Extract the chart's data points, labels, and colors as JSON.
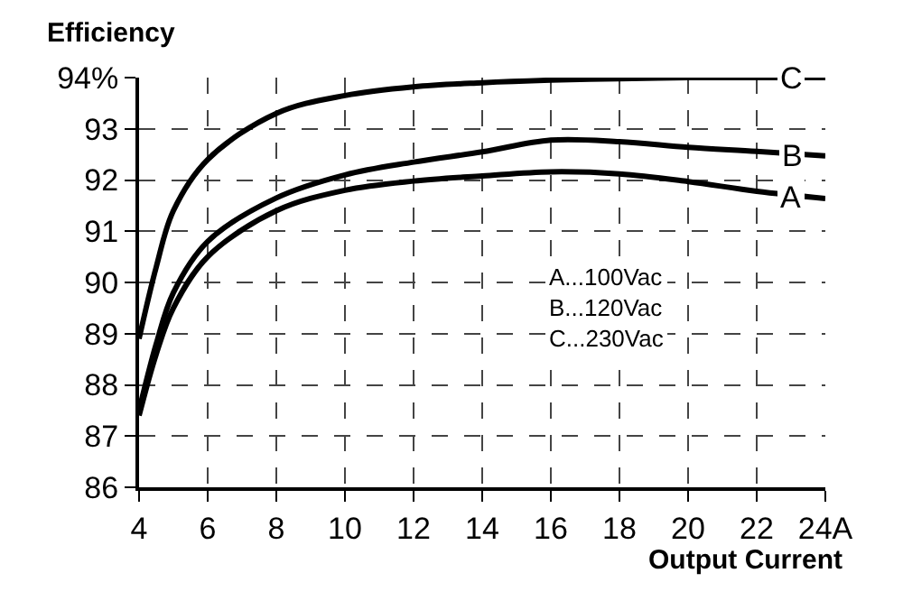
{
  "chart_data": {
    "type": "line",
    "xlabel": "Output Current",
    "ylabel": "Efficiency",
    "x": [
      4,
      4.5,
      5,
      6,
      8,
      10,
      12,
      14,
      16,
      18,
      20,
      22,
      24
    ],
    "series": [
      {
        "name": "C",
        "color": "#000000",
        "values": [
          88.9,
          90.3,
          91.4,
          92.4,
          93.3,
          93.65,
          93.82,
          93.9,
          93.95,
          93.98,
          94.0,
          94.0,
          94.0
        ]
      },
      {
        "name": "B",
        "color": "#000000",
        "values": [
          87.5,
          88.8,
          89.8,
          90.8,
          91.65,
          92.1,
          92.35,
          92.55,
          92.78,
          92.75,
          92.64,
          92.56,
          92.47
        ]
      },
      {
        "name": "A",
        "color": "#000000",
        "values": [
          87.4,
          88.6,
          89.5,
          90.5,
          91.4,
          91.8,
          91.98,
          92.08,
          92.16,
          92.12,
          91.97,
          91.78,
          91.64
        ]
      }
    ],
    "xlim": [
      4,
      24
    ],
    "ylim": [
      86,
      94
    ],
    "xticks": [
      4,
      6,
      8,
      10,
      12,
      14,
      16,
      18,
      20,
      22,
      {
        "value": 24,
        "label": "24A"
      }
    ],
    "yticks": [
      86,
      87,
      88,
      89,
      90,
      91,
      92,
      93,
      {
        "value": 94,
        "label": "94%"
      }
    ],
    "annotations": [
      "A...100Vac\nB...120Vac\nC...230Vac"
    ],
    "grid": true,
    "legend": false,
    "marker": "none",
    "line_style": "solid"
  }
}
